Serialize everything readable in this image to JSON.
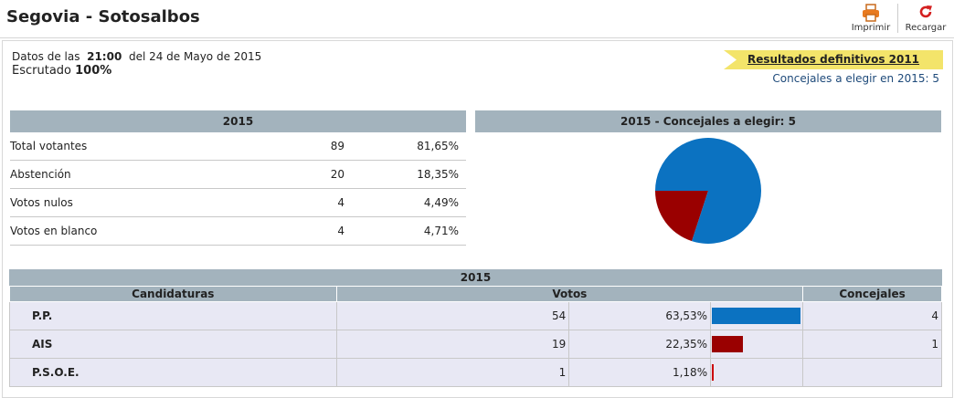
{
  "header": {
    "title": "Segovia - Sotosalbos",
    "print_label": "Imprimir",
    "reload_label": "Recargar"
  },
  "info": {
    "data_prefix": "Datos de las",
    "time": "21:00",
    "date_text": "del 24 de Mayo de 2015",
    "counted_label": "Escrutado",
    "counted_value": "100%"
  },
  "final_results_link": "Resultados definitivos 2011",
  "seats_to_elect": "Concejales a elegir en 2015: 5",
  "summary": {
    "title": "2015",
    "rows": [
      {
        "label": "Total votantes",
        "count": "89",
        "pct": "81,65%"
      },
      {
        "label": "Abstención",
        "count": "20",
        "pct": "18,35%"
      },
      {
        "label": "Votos nulos",
        "count": "4",
        "pct": "4,49%"
      },
      {
        "label": "Votos en blanco",
        "count": "4",
        "pct": "4,71%"
      }
    ]
  },
  "chart_data": {
    "type": "pie",
    "title": "2015 - Concejales a elegir: 5",
    "categories": [
      "P.P.",
      "AIS"
    ],
    "values": [
      4,
      1
    ],
    "colors": [
      "#0b72c1",
      "#9a0000"
    ]
  },
  "results": {
    "title": "2015",
    "columns": {
      "party": "Candidaturas",
      "votes": "Votos",
      "seats": "Concejales"
    },
    "rows": [
      {
        "party": "P.P.",
        "votes": "54",
        "pct": "63,53%",
        "pct_value": 63.53,
        "seats": "4",
        "color": "#0b72c1"
      },
      {
        "party": "AIS",
        "votes": "19",
        "pct": "22,35%",
        "pct_value": 22.35,
        "seats": "1",
        "color": "#9a0000"
      },
      {
        "party": "P.S.O.E.",
        "votes": "1",
        "pct": "1,18%",
        "pct_value": 1.18,
        "seats": "",
        "color": "#cc0000"
      }
    ]
  }
}
